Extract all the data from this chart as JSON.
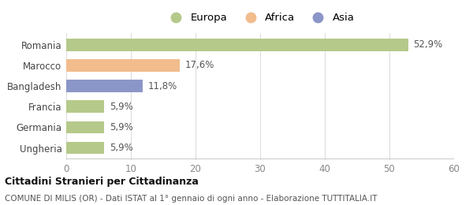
{
  "categories": [
    "Romania",
    "Marocco",
    "Bangladesh",
    "Francia",
    "Germania",
    "Ungheria"
  ],
  "values": [
    52.9,
    17.6,
    11.8,
    5.9,
    5.9,
    5.9
  ],
  "colors": [
    "#b5c98a",
    "#f2bc8d",
    "#8b96c8",
    "#b5c98a",
    "#b5c98a",
    "#b5c98a"
  ],
  "labels": [
    "52,9%",
    "17,6%",
    "11,8%",
    "5,9%",
    "5,9%",
    "5,9%"
  ],
  "legend": [
    {
      "label": "Europa",
      "color": "#b5c98a"
    },
    {
      "label": "Africa",
      "color": "#f2bc8d"
    },
    {
      "label": "Asia",
      "color": "#8b96c8"
    }
  ],
  "xlim": [
    0,
    60
  ],
  "xticks": [
    0,
    10,
    20,
    30,
    40,
    50,
    60
  ],
  "title": "Cittadini Stranieri per Cittadinanza",
  "subtitle": "COMUNE DI MILIS (OR) - Dati ISTAT al 1° gennaio di ogni anno - Elaborazione TUTTITALIA.IT",
  "background_color": "#ffffff",
  "bar_height": 0.6,
  "label_fontsize": 8.5,
  "tick_fontsize": 8.5,
  "legend_fontsize": 9.5
}
